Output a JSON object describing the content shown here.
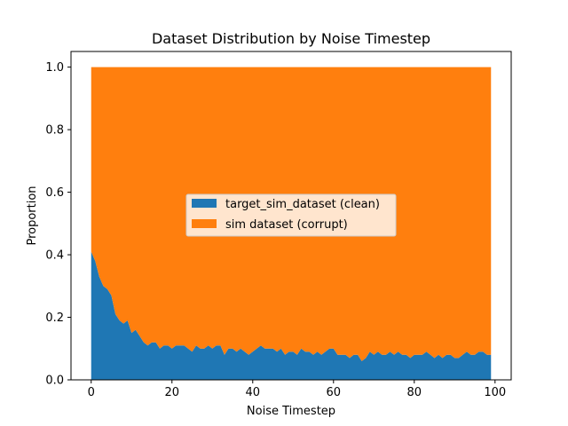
{
  "chart_data": {
    "type": "area",
    "stacked": true,
    "normalized": true,
    "title": "Dataset Distribution by Noise Timestep",
    "xlabel": "Noise Timestep",
    "ylabel": "Proportion",
    "xlim": [
      -5,
      104
    ],
    "ylim": [
      0,
      1.05
    ],
    "xticks": [
      0,
      20,
      40,
      60,
      80,
      100
    ],
    "yticks": [
      0.0,
      0.2,
      0.4,
      0.6,
      0.8,
      1.0
    ],
    "ytick_labels": [
      "0.0",
      "0.2",
      "0.4",
      "0.6",
      "0.8",
      "1.0"
    ],
    "legend_position": "center",
    "x": [
      0,
      1,
      2,
      3,
      4,
      5,
      6,
      7,
      8,
      9,
      10,
      11,
      12,
      13,
      14,
      15,
      16,
      17,
      18,
      19,
      20,
      21,
      22,
      23,
      24,
      25,
      26,
      27,
      28,
      29,
      30,
      31,
      32,
      33,
      34,
      35,
      36,
      37,
      38,
      39,
      40,
      41,
      42,
      43,
      44,
      45,
      46,
      47,
      48,
      49,
      50,
      51,
      52,
      53,
      54,
      55,
      56,
      57,
      58,
      59,
      60,
      61,
      62,
      63,
      64,
      65,
      66,
      67,
      68,
      69,
      70,
      71,
      72,
      73,
      74,
      75,
      76,
      77,
      78,
      79,
      80,
      81,
      82,
      83,
      84,
      85,
      86,
      87,
      88,
      89,
      90,
      91,
      92,
      93,
      94,
      95,
      96,
      97,
      98,
      99
    ],
    "series": [
      {
        "name": "target_sim_dataset (clean)",
        "color": "#1f77b4",
        "values": [
          0.41,
          0.38,
          0.33,
          0.3,
          0.29,
          0.27,
          0.21,
          0.19,
          0.18,
          0.19,
          0.15,
          0.16,
          0.14,
          0.12,
          0.11,
          0.12,
          0.12,
          0.1,
          0.11,
          0.11,
          0.1,
          0.11,
          0.11,
          0.11,
          0.1,
          0.09,
          0.11,
          0.1,
          0.1,
          0.11,
          0.1,
          0.11,
          0.11,
          0.08,
          0.1,
          0.1,
          0.09,
          0.1,
          0.09,
          0.08,
          0.09,
          0.1,
          0.11,
          0.1,
          0.1,
          0.1,
          0.09,
          0.1,
          0.08,
          0.09,
          0.09,
          0.08,
          0.1,
          0.09,
          0.09,
          0.08,
          0.09,
          0.08,
          0.09,
          0.1,
          0.1,
          0.08,
          0.08,
          0.08,
          0.07,
          0.08,
          0.08,
          0.06,
          0.07,
          0.09,
          0.08,
          0.09,
          0.08,
          0.08,
          0.09,
          0.08,
          0.09,
          0.08,
          0.08,
          0.07,
          0.08,
          0.08,
          0.08,
          0.09,
          0.08,
          0.07,
          0.08,
          0.07,
          0.08,
          0.08,
          0.07,
          0.07,
          0.08,
          0.09,
          0.08,
          0.08,
          0.09,
          0.09,
          0.08,
          0.08
        ]
      },
      {
        "name": "sim dataset (corrupt)",
        "color": "#ff7f0e",
        "values": [
          0.59,
          0.62,
          0.67,
          0.7,
          0.71,
          0.73,
          0.79,
          0.81,
          0.82,
          0.81,
          0.85,
          0.84,
          0.86,
          0.88,
          0.89,
          0.88,
          0.88,
          0.9,
          0.89,
          0.89,
          0.9,
          0.89,
          0.89,
          0.89,
          0.9,
          0.91,
          0.89,
          0.9,
          0.9,
          0.89,
          0.9,
          0.89,
          0.89,
          0.92,
          0.9,
          0.9,
          0.91,
          0.9,
          0.91,
          0.92,
          0.91,
          0.9,
          0.89,
          0.9,
          0.9,
          0.9,
          0.91,
          0.9,
          0.92,
          0.91,
          0.91,
          0.92,
          0.9,
          0.91,
          0.91,
          0.92,
          0.91,
          0.92,
          0.91,
          0.9,
          0.9,
          0.92,
          0.92,
          0.92,
          0.93,
          0.92,
          0.92,
          0.94,
          0.93,
          0.91,
          0.92,
          0.91,
          0.92,
          0.92,
          0.91,
          0.92,
          0.91,
          0.92,
          0.92,
          0.93,
          0.92,
          0.92,
          0.92,
          0.91,
          0.92,
          0.93,
          0.92,
          0.93,
          0.92,
          0.92,
          0.93,
          0.93,
          0.92,
          0.91,
          0.92,
          0.92,
          0.91,
          0.91,
          0.92,
          0.92
        ]
      }
    ]
  }
}
